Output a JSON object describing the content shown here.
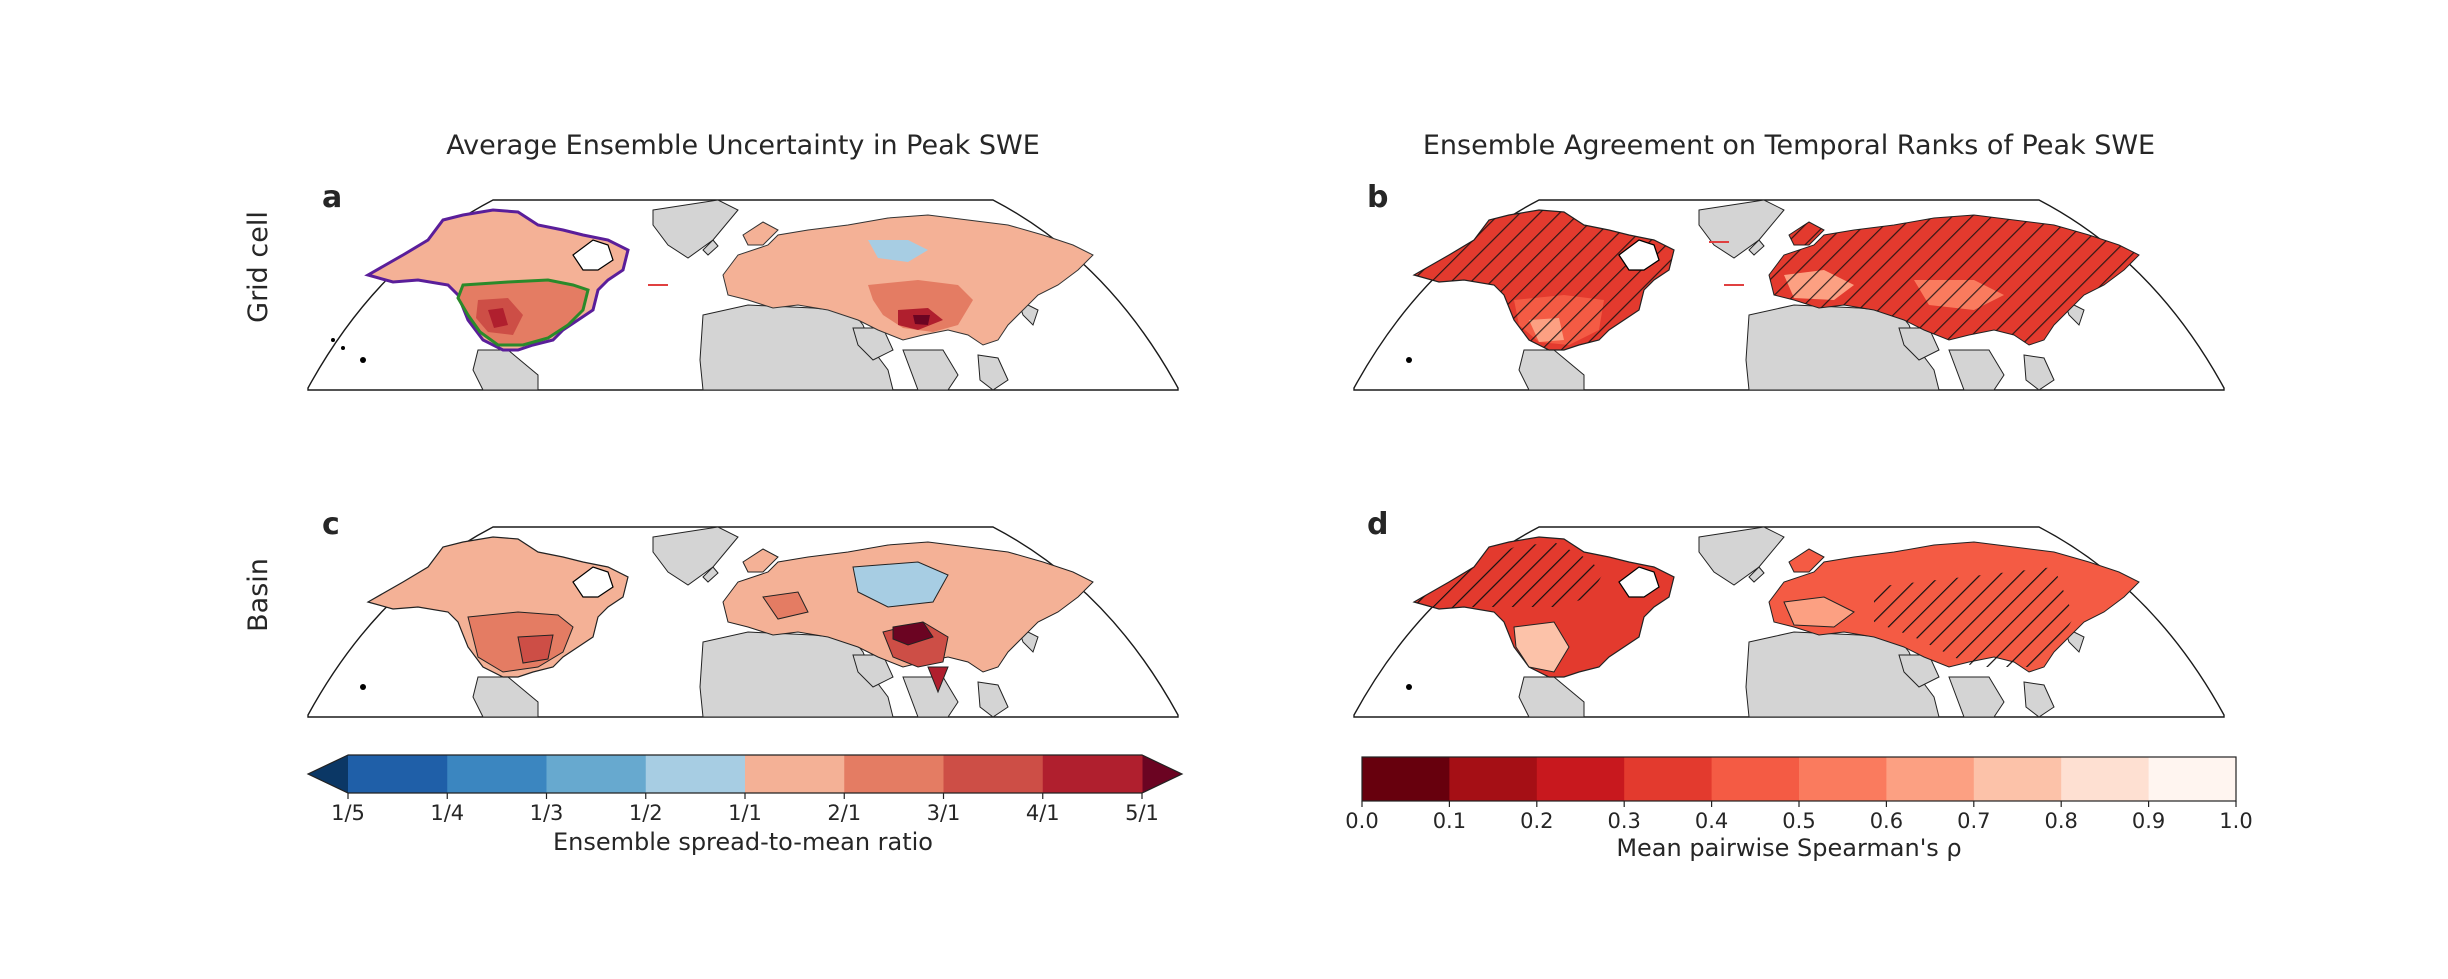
{
  "columns": [
    {
      "title": "Average Ensemble Uncertainty in Peak SWE"
    },
    {
      "title": "Ensemble Agreement on Temporal Ranks of Peak SWE"
    }
  ],
  "rows": [
    {
      "label": "Grid cell"
    },
    {
      "label": "Basin"
    }
  ],
  "panels": [
    {
      "letter": "a"
    },
    {
      "letter": "b"
    },
    {
      "letter": "c"
    },
    {
      "letter": "d"
    }
  ],
  "colorbar_left": {
    "label": "Ensemble spread-to-mean ratio",
    "ticks": [
      "1/5",
      "1/4",
      "1/3",
      "1/2",
      "1/1",
      "2/1",
      "3/1",
      "4/1",
      "5/1"
    ],
    "colors": [
      "#1f5fa8",
      "#3b86c0",
      "#67a9cf",
      "#a7cde3",
      "#f4b196",
      "#e47c63",
      "#cd4e46",
      "#b01f2e"
    ],
    "extend_low": "#0b3765",
    "extend_high": "#6b0422"
  },
  "colorbar_right": {
    "label": "Mean pairwise Spearman's ρ",
    "ticks": [
      "0.0",
      "0.1",
      "0.2",
      "0.3",
      "0.4",
      "0.5",
      "0.6",
      "0.7",
      "0.8",
      "0.9",
      "1.0"
    ],
    "colors": [
      "#67000d",
      "#a50f15",
      "#c8181e",
      "#e33a2e",
      "#f45b44",
      "#fa7b5e",
      "#fca082",
      "#fcc2a9",
      "#fee0d2",
      "#fff5f0"
    ]
  },
  "legend_colors": {
    "land_no_data": "#d4d4d4",
    "outline_purple": "#5a1e9a",
    "outline_green": "#2a8a2a"
  }
}
